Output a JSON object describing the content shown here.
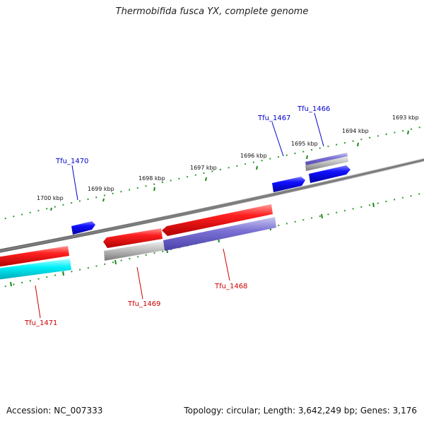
{
  "title": "Thermobifida fusca YX, complete genome",
  "accession": "Accession: NC_007333",
  "topology": "Topology: circular; Length: 3,642,249 bp; Genes: 3,176",
  "colors": {
    "backbone": "#808080",
    "tick": "#1a8a1a",
    "forward_gene": "#0000ee",
    "reverse_gene": "#ee0000",
    "label_forward": "#0000cc",
    "label_reverse": "#cc0000",
    "cds_feature": "#7070d0",
    "rna_feature": "#00e0e8",
    "misc_feature": "#a0a0a0"
  },
  "scale_labels": [
    {
      "text": "1700 kbp"
    },
    {
      "text": "1699 kbp"
    },
    {
      "text": "1698 kbp"
    },
    {
      "text": "1697 kbp"
    },
    {
      "text": "1696 kbp"
    },
    {
      "text": "1695 kbp"
    },
    {
      "text": "1694 kbp"
    },
    {
      "text": "1693 kbp"
    }
  ],
  "gene_labels": [
    {
      "text": "Tfu_1470",
      "strand": "forward"
    },
    {
      "text": "Tfu_1467",
      "strand": "forward"
    },
    {
      "text": "Tfu_1466",
      "strand": "forward"
    },
    {
      "text": "Tfu_1471",
      "strand": "reverse"
    },
    {
      "text": "Tfu_1469",
      "strand": "reverse"
    },
    {
      "text": "Tfu_1468",
      "strand": "reverse"
    }
  ]
}
